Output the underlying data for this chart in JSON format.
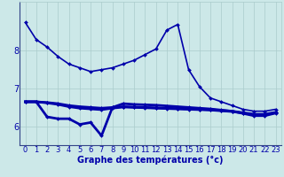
{
  "background_color": "#cce8e8",
  "plot_bg_color": "#cce8e8",
  "grid_color": "#aacccc",
  "line_color": "#0000aa",
  "xlabel": "Graphe des températures (°c)",
  "xlabel_fontsize": 7,
  "tick_fontsize": 6,
  "ytick_fontsize": 7,
  "yticks": [
    6,
    7,
    8
  ],
  "xlim": [
    -0.5,
    23.5
  ],
  "ylim": [
    5.5,
    9.3
  ],
  "series": [
    [
      8.75,
      8.3,
      8.1,
      7.85,
      7.65,
      7.55,
      7.45,
      7.5,
      7.55,
      7.65,
      7.75,
      7.9,
      8.05,
      8.55,
      8.7,
      7.5,
      7.05,
      6.75,
      6.65,
      6.55,
      6.45,
      6.4,
      6.4,
      6.45
    ],
    [
      6.65,
      6.65,
      6.25,
      6.2,
      6.2,
      6.05,
      6.1,
      5.75,
      6.5,
      6.6,
      6.58,
      6.57,
      6.56,
      6.54,
      6.52,
      6.5,
      6.48,
      6.46,
      6.43,
      6.4,
      6.34,
      6.28,
      6.28,
      6.35
    ],
    [
      6.65,
      6.65,
      6.63,
      6.6,
      6.55,
      6.52,
      6.5,
      6.48,
      6.5,
      6.52,
      6.51,
      6.5,
      6.49,
      6.48,
      6.47,
      6.46,
      6.45,
      6.44,
      6.42,
      6.4,
      6.36,
      6.32,
      6.32,
      6.37
    ],
    [
      6.65,
      6.65,
      6.62,
      6.58,
      6.52,
      6.48,
      6.46,
      6.44,
      6.48,
      6.51,
      6.5,
      6.49,
      6.48,
      6.47,
      6.46,
      6.45,
      6.44,
      6.43,
      6.41,
      6.39,
      6.35,
      6.31,
      6.31,
      6.36
    ]
  ],
  "linewidths": [
    1.2,
    2.0,
    2.0,
    2.0
  ],
  "marker_size": 2.0
}
